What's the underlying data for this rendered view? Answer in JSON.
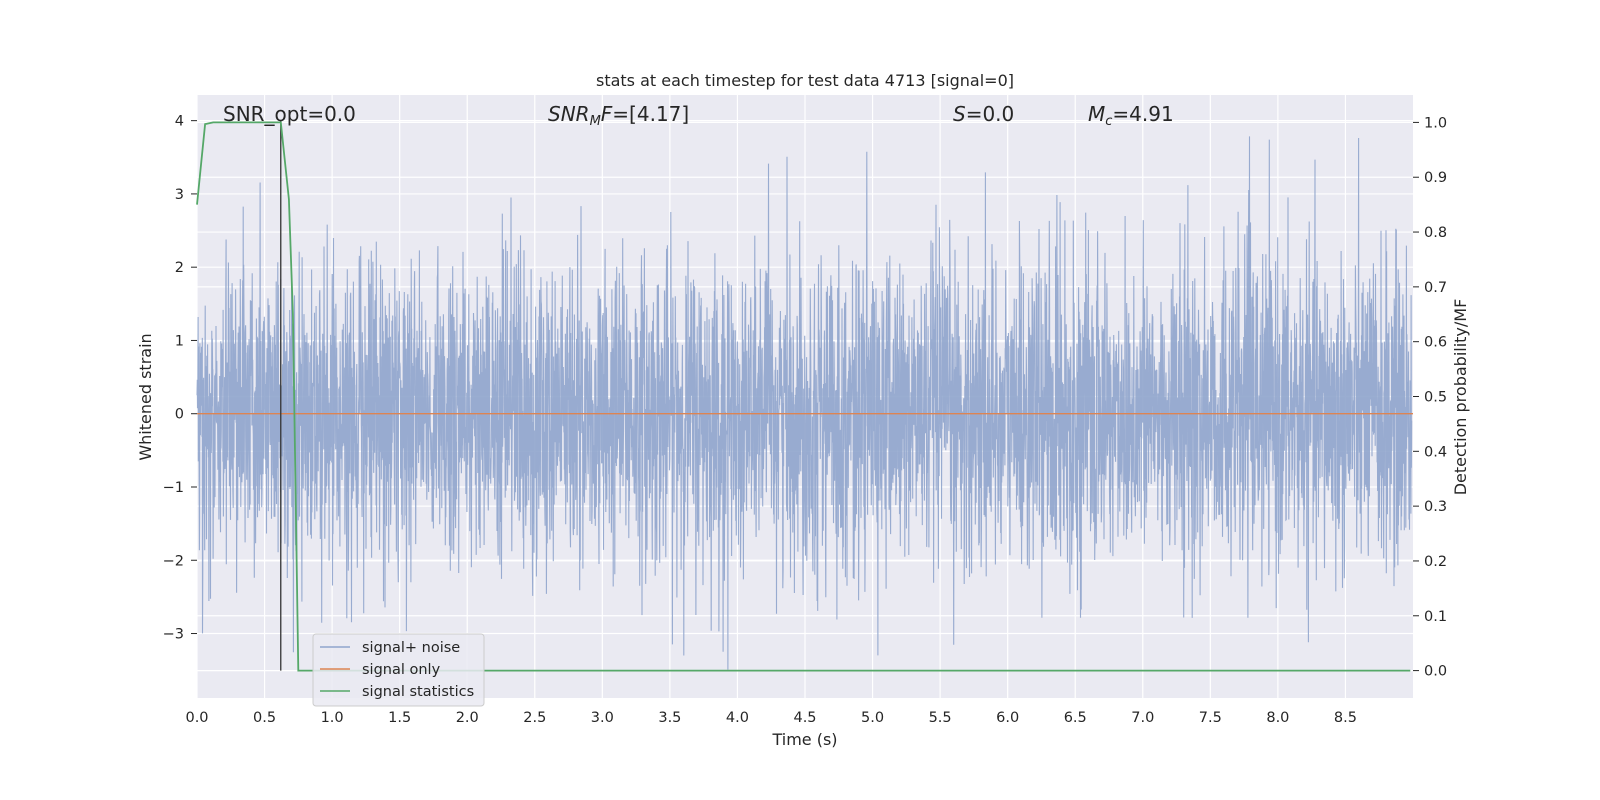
{
  "chart_data": {
    "type": "line",
    "title": "stats at each timestep for test data 4713 [signal=0]",
    "xlabel": "Time (s)",
    "ylabel_left": "Whitened strain",
    "ylabel_right": "Detection probability/MF",
    "xlim": [
      0.0,
      9.0
    ],
    "ylim_left": [
      -3.88,
      4.35
    ],
    "ylim_right": [
      -0.05,
      1.05
    ],
    "x_ticks": [
      "0.0",
      "0.5",
      "1.0",
      "1.5",
      "2.0",
      "2.5",
      "3.0",
      "3.5",
      "4.0",
      "4.5",
      "5.0",
      "5.5",
      "6.0",
      "6.5",
      "7.0",
      "7.5",
      "8.0",
      "8.5"
    ],
    "y_left_ticks": [
      "4",
      "3",
      "2",
      "1",
      "0",
      "−1",
      "−2",
      "−3"
    ],
    "y_right_ticks": [
      "1.0",
      "0.9",
      "0.8",
      "0.7",
      "0.6",
      "0.5",
      "0.4",
      "0.3",
      "0.2",
      "0.1",
      "0.0"
    ],
    "grid": true,
    "legend_position": "lower-left",
    "annotations": {
      "snr_opt": "SNR_opt=0.0",
      "snr_mf_var": "SNR",
      "snr_mf_sub": "M",
      "snr_mf_f": "F",
      "snr_mf_val": "=[4.17]",
      "s_var": "S",
      "s_val": "=0.0",
      "mc_var": "M",
      "mc_sub": "c",
      "mc_val": "=4.91"
    },
    "vertical_marker_x": 0.62,
    "series": [
      {
        "name": "signal+ noise",
        "axis": "left",
        "color": "#8fa4cc",
        "description_range": [
          -3.5,
          4.0
        ],
        "rng_seed": 4713
      },
      {
        "name": "signal only",
        "axis": "left",
        "color": "#dd8452",
        "x": [
          0.0,
          9.0
        ],
        "values": [
          0.0,
          0.0
        ]
      },
      {
        "name": "signal statistics",
        "axis": "right",
        "color": "#55a868",
        "x": [
          0.0,
          0.06,
          0.12,
          0.25,
          0.5,
          0.62,
          0.68,
          0.71,
          0.75,
          8.98
        ],
        "values": [
          0.85,
          0.997,
          1.0,
          1.0,
          1.0,
          1.0,
          0.86,
          0.65,
          0.0,
          0.0
        ]
      }
    ]
  }
}
